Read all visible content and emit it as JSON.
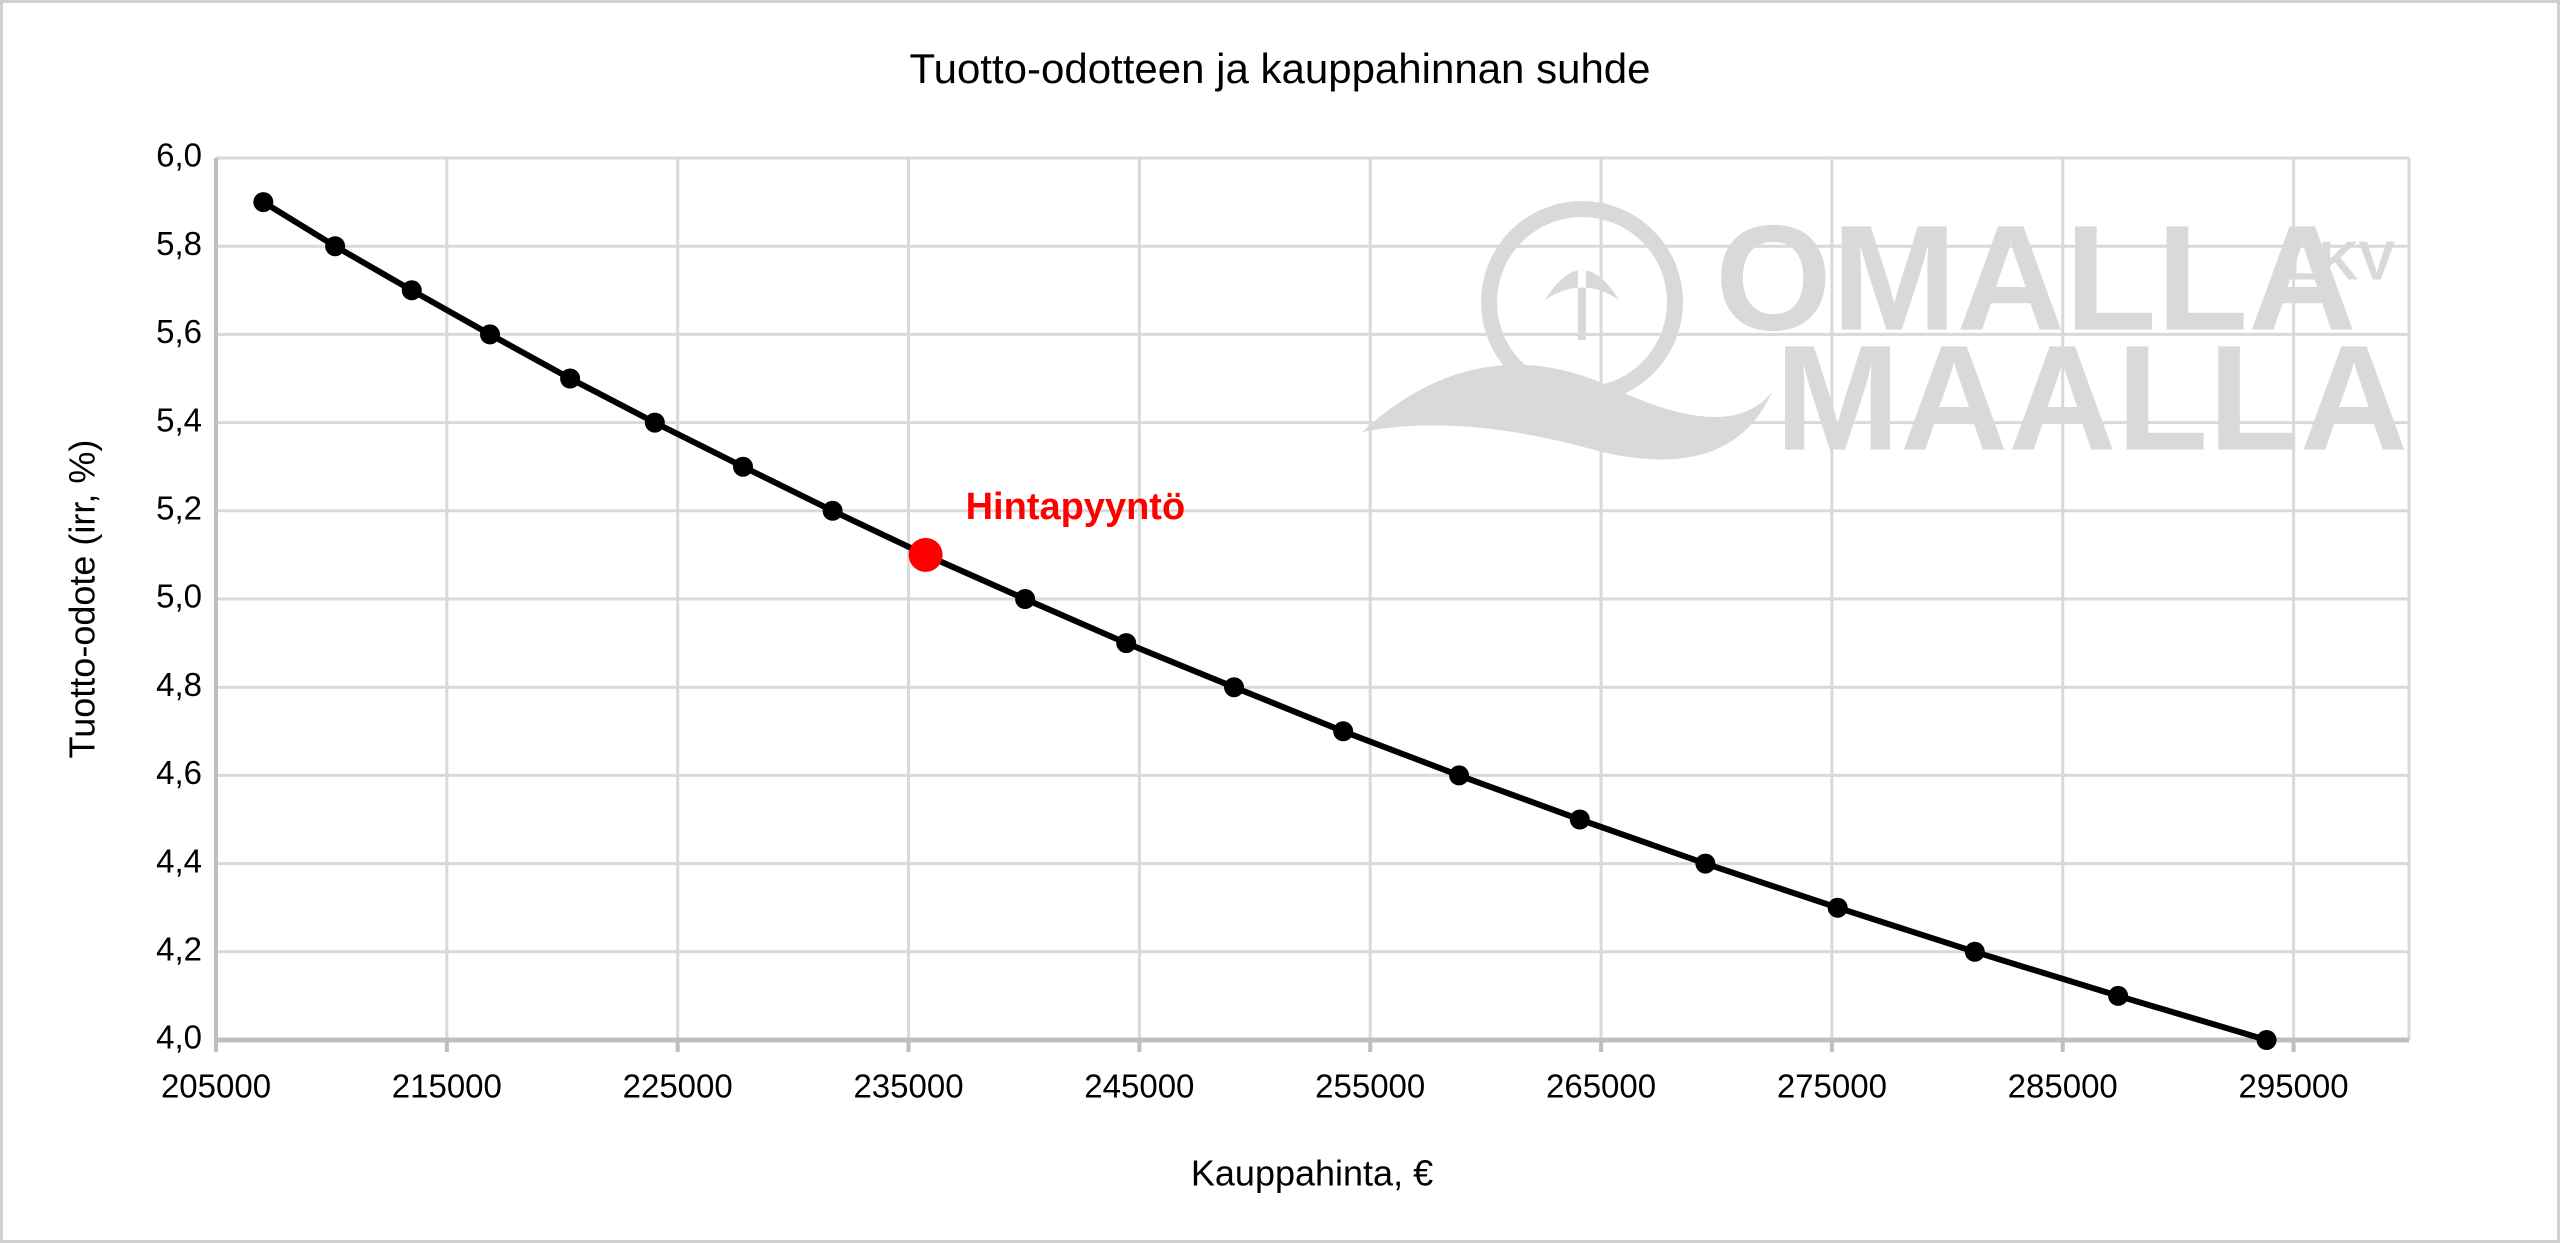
{
  "chart_data": {
    "type": "line",
    "title": "Tuotto-odotteen ja kauppahinnan suhde",
    "x_label": "Kauppahinta, €",
    "y_label": "Tuotto-odote (irr, %)",
    "x": [
      207050,
      210160,
      213480,
      216870,
      220340,
      224010,
      227830,
      231710,
      235740,
      240050,
      244430,
      249100,
      253830,
      258850,
      264080,
      269520,
      275250,
      281190,
      287400,
      293830
    ],
    "series": [
      {
        "color": "#000000",
        "values": [
          5.9,
          5.8,
          5.7,
          5.6,
          5.5,
          5.4,
          5.3,
          5.2,
          5.1,
          5.0,
          4.9,
          4.8,
          4.7,
          4.6,
          4.5,
          4.4,
          4.3,
          4.2,
          4.1,
          4.0
        ]
      }
    ],
    "annotation": {
      "text": "Hintapyyntö",
      "x": 235740,
      "y": 5.1,
      "color": "#ff0000"
    },
    "xlim": [
      205000,
      300000
    ],
    "xticks": [
      205000,
      215000,
      225000,
      235000,
      245000,
      255000,
      265000,
      275000,
      285000,
      295000
    ],
    "ylim": [
      4.0,
      6.0
    ],
    "yticks": [
      {
        "value": 4.0,
        "label": "4,0"
      },
      {
        "value": 4.2,
        "label": "4,2"
      },
      {
        "value": 4.4,
        "label": "4,4"
      },
      {
        "value": 4.6,
        "label": "4,6"
      },
      {
        "value": 4.8,
        "label": "4,8"
      },
      {
        "value": 5.0,
        "label": "5,0"
      },
      {
        "value": 5.2,
        "label": "5,2"
      },
      {
        "value": 5.4,
        "label": "5,4"
      },
      {
        "value": 5.6,
        "label": "5,6"
      },
      {
        "value": 5.8,
        "label": "5,8"
      },
      {
        "value": 6.0,
        "label": "6,0"
      }
    ],
    "grid": true,
    "watermark": {
      "line1": "OMALLA",
      "line2": "MAALLA",
      "badge": "LKV"
    }
  }
}
